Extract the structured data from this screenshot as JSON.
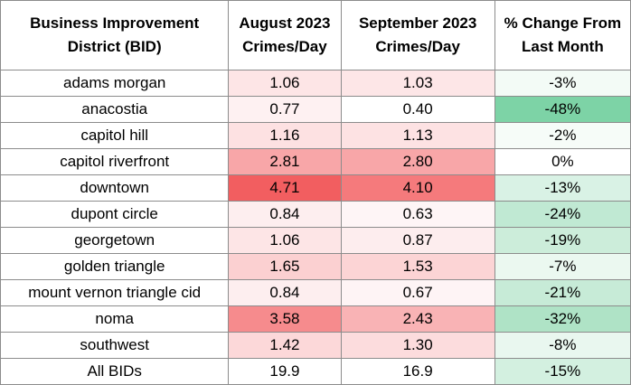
{
  "headers": [
    "Business Improvement District (BID)",
    "August 2023 Crimes/Day",
    "September 2023 Crimes/Day",
    "% Change From Last Month"
  ],
  "rows": [
    {
      "district": "adams morgan",
      "aug": "1.06",
      "sep": "1.03",
      "change": "-3%",
      "aug_color": "#fde5e6",
      "sep_color": "#fde6e7",
      "change_color": "#f3fbf6"
    },
    {
      "district": "anacostia",
      "aug": "0.77",
      "sep": "0.40",
      "change": "-48%",
      "aug_color": "#fef1f2",
      "sep_color": "#ffffff",
      "change_color": "#7dd3a6"
    },
    {
      "district": "capitol hill",
      "aug": "1.16",
      "sep": "1.13",
      "change": "-2%",
      "aug_color": "#fde1e2",
      "sep_color": "#fde2e3",
      "change_color": "#f6fcf8"
    },
    {
      "district": "capitol riverfront",
      "aug": "2.81",
      "sep": "2.80",
      "change": "0%",
      "aug_color": "#f8a6a8",
      "sep_color": "#f8a6a8",
      "change_color": "#ffffff"
    },
    {
      "district": "downtown",
      "aug": "4.71",
      "sep": "4.10",
      "change": "-13%",
      "aug_color": "#f25e60",
      "sep_color": "#f57a7c",
      "change_color": "#d9f2e5"
    },
    {
      "district": "dupont circle",
      "aug": "0.84",
      "sep": "0.63",
      "change": "-24%",
      "aug_color": "#fdeeef",
      "sep_color": "#fef5f6",
      "change_color": "#c0e9d3"
    },
    {
      "district": "georgetown",
      "aug": "1.06",
      "sep": "0.87",
      "change": "-19%",
      "aug_color": "#fde5e6",
      "sep_color": "#fdedee",
      "change_color": "#ccedda"
    },
    {
      "district": "golden triangle",
      "aug": "1.65",
      "sep": "1.53",
      "change": "-7%",
      "aug_color": "#fbd0d1",
      "sep_color": "#fcd4d5",
      "change_color": "#ebf8f0"
    },
    {
      "district": "mount vernon triangle cid",
      "aug": "0.84",
      "sep": "0.67",
      "change": "-21%",
      "aug_color": "#fdeeef",
      "sep_color": "#fef4f5",
      "change_color": "#c7ebd7"
    },
    {
      "district": "noma",
      "aug": "3.58",
      "sep": "2.43",
      "change": "-32%",
      "aug_color": "#f68b8d",
      "sep_color": "#f9b3b5",
      "change_color": "#afe3c6"
    },
    {
      "district": "southwest",
      "aug": "1.42",
      "sep": "1.30",
      "change": "-8%",
      "aug_color": "#fcd8d9",
      "sep_color": "#fcdcdd",
      "change_color": "#e9f7ef"
    },
    {
      "district": "All BIDs",
      "aug": "19.9",
      "sep": "16.9",
      "change": "-15%",
      "aug_color": "#ffffff",
      "sep_color": "#ffffff",
      "change_color": "#d3f0e0"
    }
  ]
}
